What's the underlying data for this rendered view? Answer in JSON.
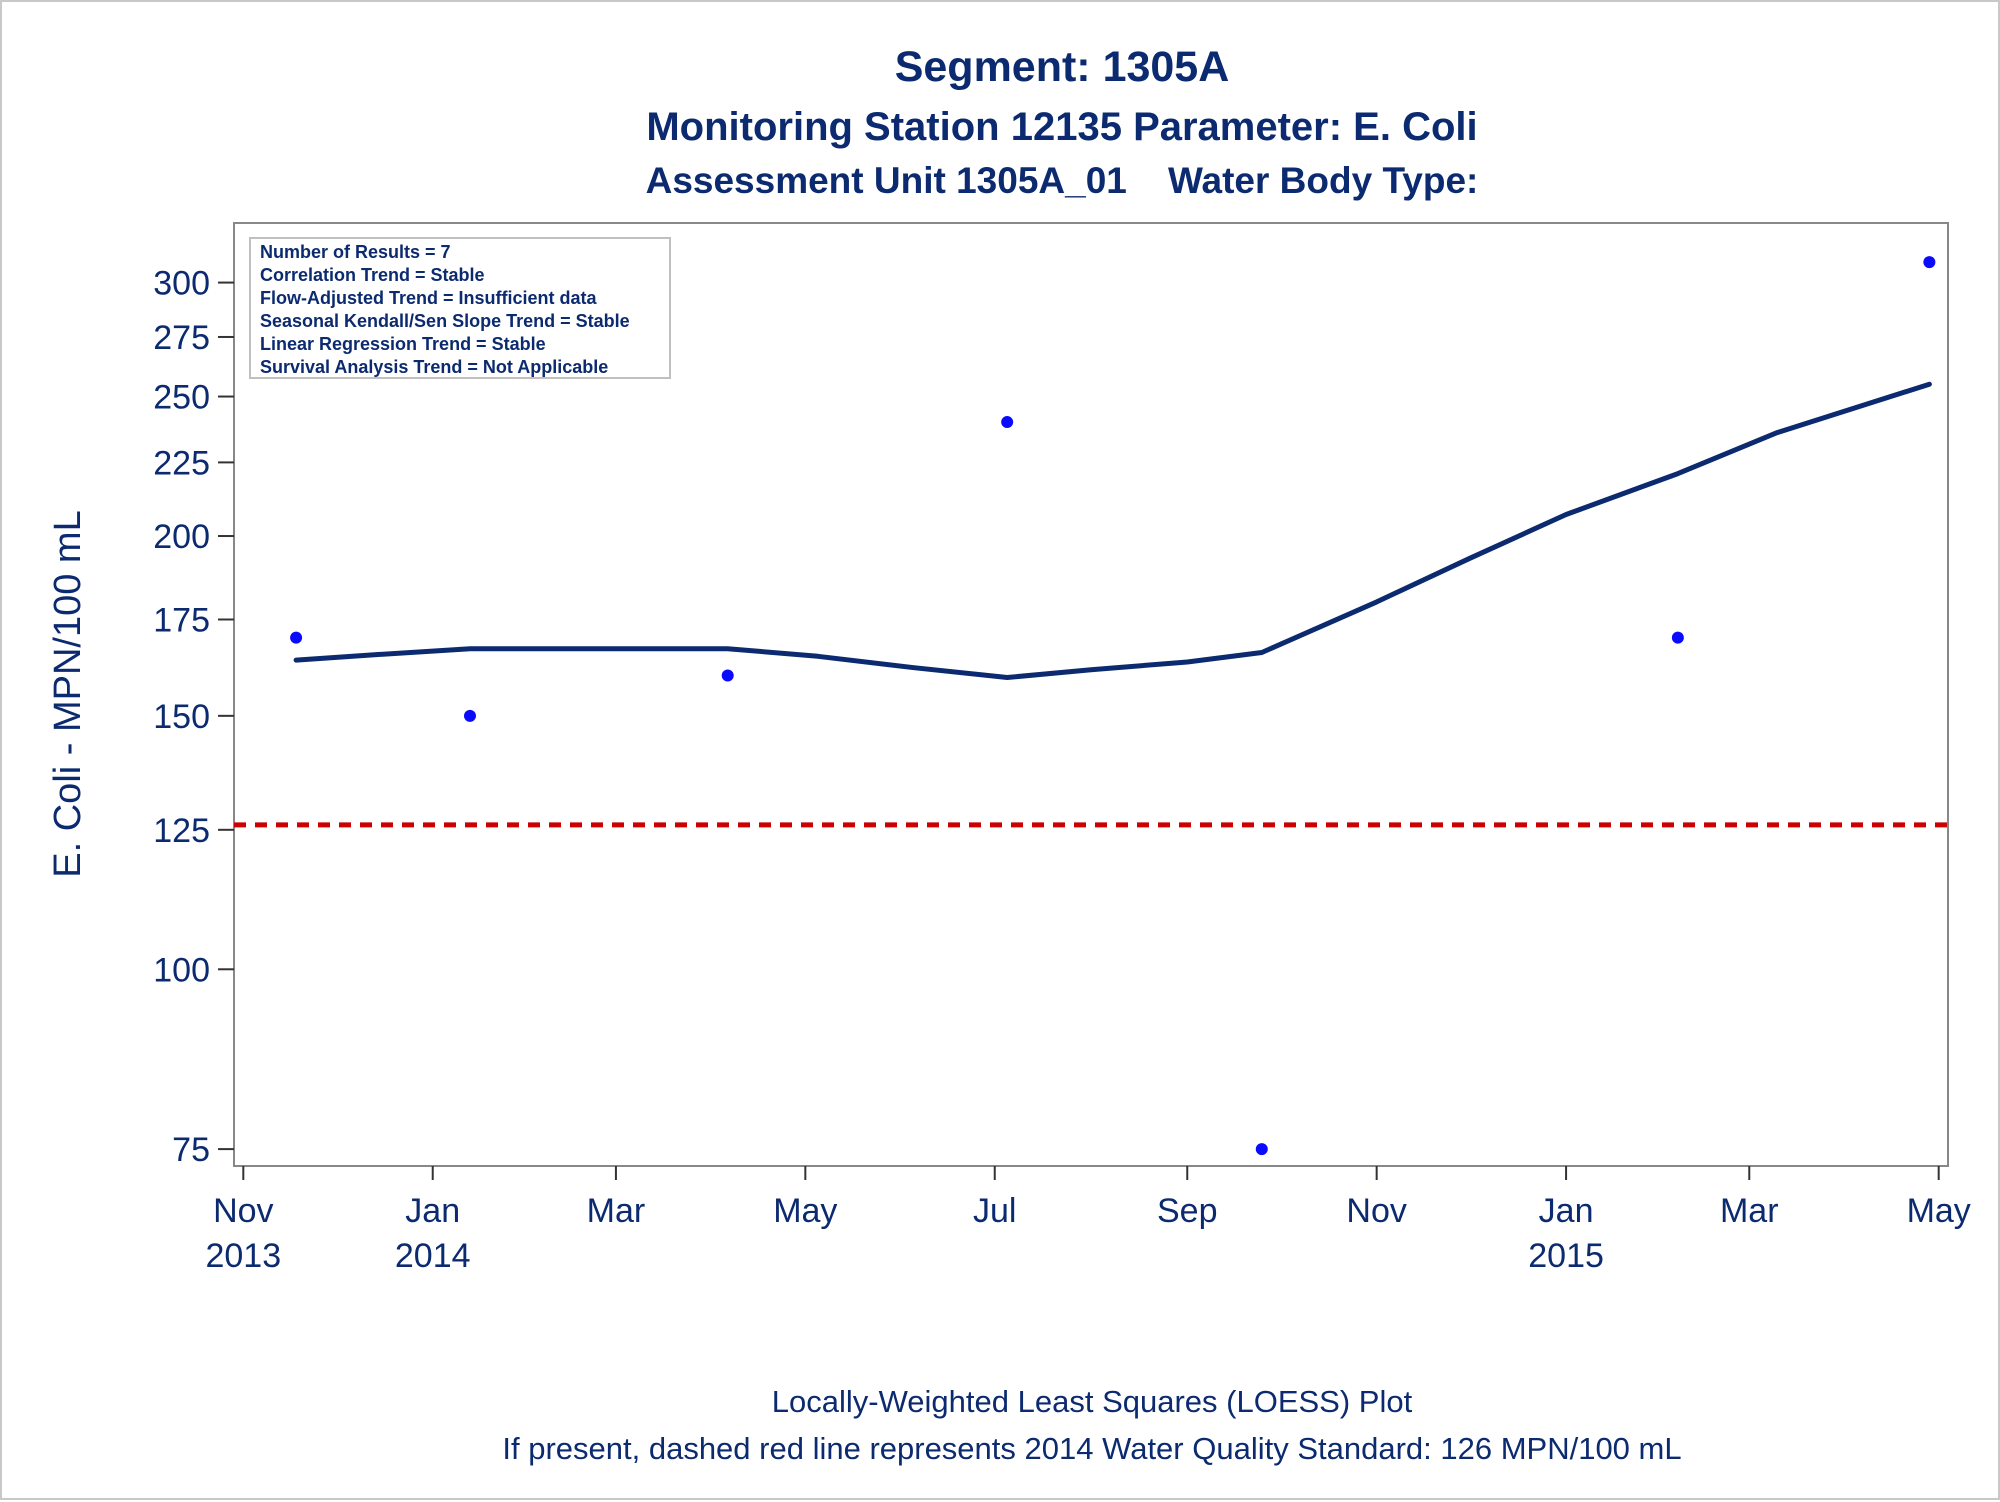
{
  "chart_data": {
    "type": "scatter",
    "title": "Segment: 1305A",
    "subtitle": "Monitoring Station 12135 Parameter: E. Coli",
    "subtitle2": "Assessment Unit 1305A_01    Water Body Type:",
    "xlabel": "",
    "ylabel": "E. Coli - MPN/100 mL",
    "y_scale": "log",
    "ylim": [
      73,
      330
    ],
    "xlim": [
      "2013-10-29",
      "2015-05-04"
    ],
    "y_ticks": [
      75,
      100,
      125,
      150,
      175,
      200,
      225,
      250,
      275,
      300
    ],
    "x_ticks": [
      {
        "date": "2013-11-01",
        "line1": "Nov",
        "line2": "2013"
      },
      {
        "date": "2014-01-01",
        "line1": "Jan",
        "line2": "2014"
      },
      {
        "date": "2014-03-01",
        "line1": "Mar",
        "line2": ""
      },
      {
        "date": "2014-05-01",
        "line1": "May",
        "line2": ""
      },
      {
        "date": "2014-07-01",
        "line1": "Jul",
        "line2": ""
      },
      {
        "date": "2014-09-01",
        "line1": "Sep",
        "line2": ""
      },
      {
        "date": "2014-11-01",
        "line1": "Nov",
        "line2": ""
      },
      {
        "date": "2015-01-01",
        "line1": "Jan",
        "line2": "2015"
      },
      {
        "date": "2015-03-01",
        "line1": "Mar",
        "line2": ""
      },
      {
        "date": "2015-05-01",
        "line1": "May",
        "line2": ""
      }
    ],
    "series": [
      {
        "kind": "points",
        "color": "#0a0aff",
        "points": [
          {
            "x": "2013-11-18",
            "y": 170
          },
          {
            "x": "2014-01-13",
            "y": 150
          },
          {
            "x": "2014-04-06",
            "y": 160
          },
          {
            "x": "2014-07-05",
            "y": 240
          },
          {
            "x": "2014-09-25",
            "y": 75
          },
          {
            "x": "2015-02-06",
            "y": 170
          },
          {
            "x": "2015-04-28",
            "y": 310
          }
        ]
      },
      {
        "kind": "loess",
        "color": "#0b2a6f",
        "points": [
          {
            "x": "2013-11-18",
            "y": 164
          },
          {
            "x": "2013-12-15",
            "y": 165.5
          },
          {
            "x": "2014-01-13",
            "y": 167
          },
          {
            "x": "2014-02-10",
            "y": 167
          },
          {
            "x": "2014-03-10",
            "y": 167
          },
          {
            "x": "2014-04-06",
            "y": 167
          },
          {
            "x": "2014-05-05",
            "y": 165
          },
          {
            "x": "2014-06-05",
            "y": 162
          },
          {
            "x": "2014-07-05",
            "y": 159.5
          },
          {
            "x": "2014-08-01",
            "y": 161.5
          },
          {
            "x": "2014-09-01",
            "y": 163.5
          },
          {
            "x": "2014-09-25",
            "y": 166
          },
          {
            "x": "2014-11-01",
            "y": 180
          },
          {
            "x": "2014-12-01",
            "y": 193
          },
          {
            "x": "2015-01-01",
            "y": 207
          },
          {
            "x": "2015-02-06",
            "y": 221
          },
          {
            "x": "2015-03-10",
            "y": 236
          },
          {
            "x": "2015-04-28",
            "y": 255
          }
        ]
      }
    ],
    "reference_line": {
      "y": 126,
      "color": "#cc0000",
      "style": "dashed"
    },
    "legend": "none",
    "grid": false
  },
  "inset": {
    "lines": [
      "Number of Results = 7",
      "Correlation Trend = Stable",
      "Flow-Adjusted Trend = Insufficient data",
      "Seasonal Kendall/Sen Slope Trend = Stable",
      "Linear Regression Trend = Stable",
      "Survival Analysis Trend = Not Applicable"
    ]
  },
  "footnotes": [
    "Locally-Weighted Least Squares (LOESS) Plot",
    "If present, dashed red line represents 2014 Water Quality Standard: 126 MPN/100 mL"
  ]
}
